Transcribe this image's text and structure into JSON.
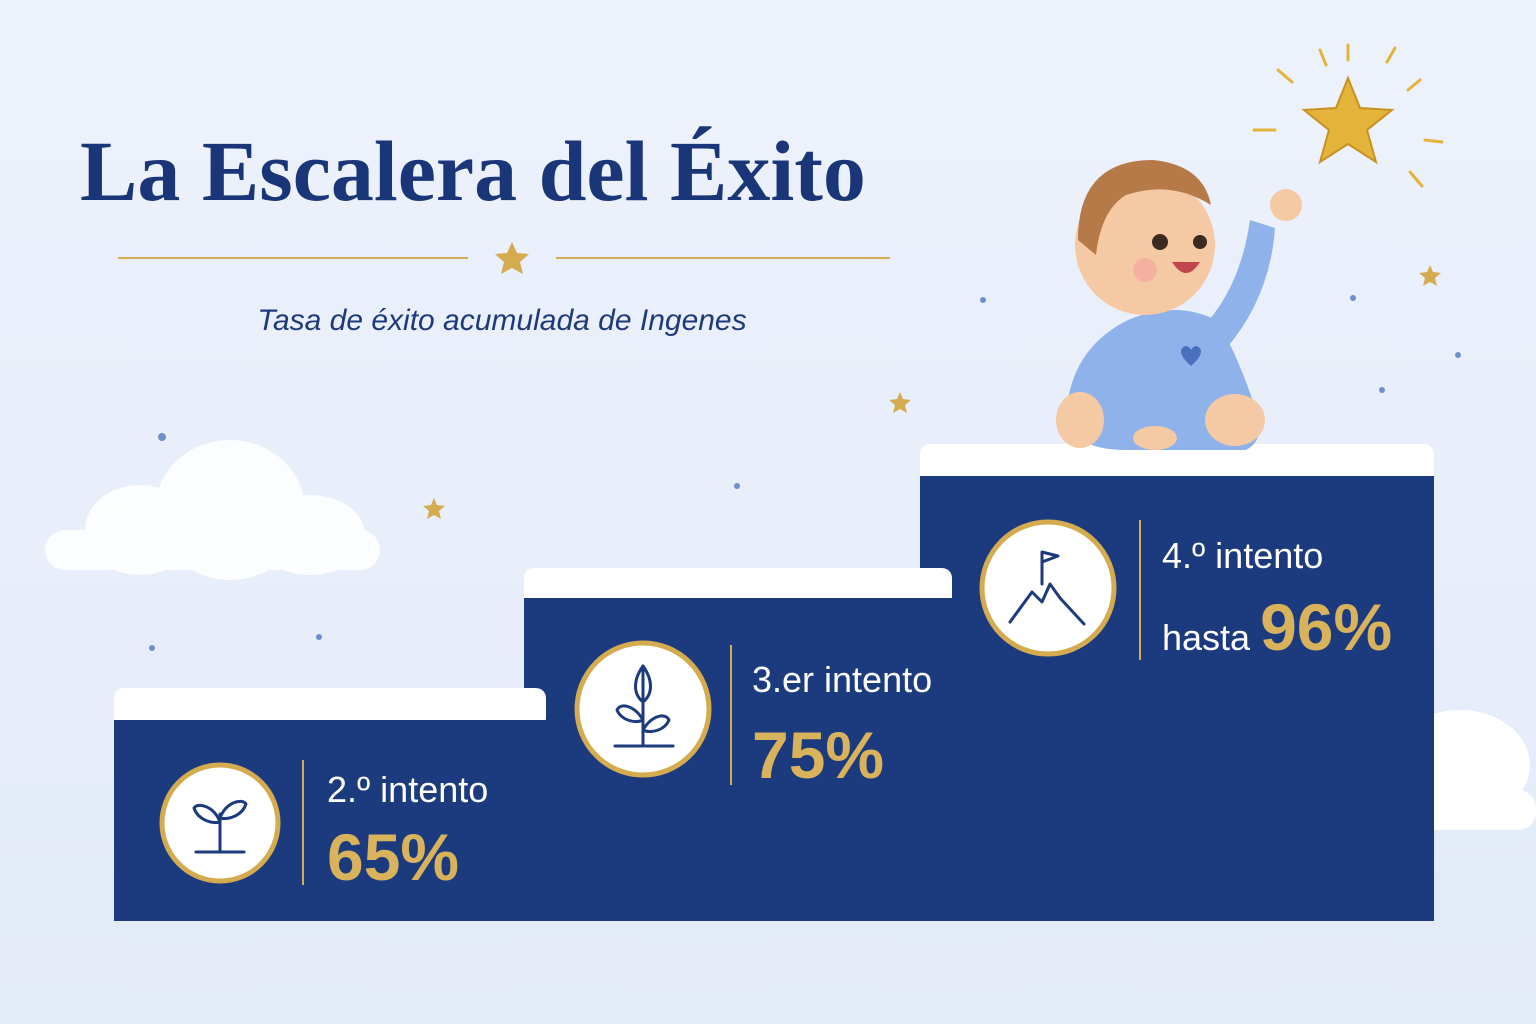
{
  "header": {
    "title": "La Escalera del Éxito",
    "subtitle": "Tasa de éxito acumulada de Ingenes"
  },
  "steps": [
    {
      "label": "2.º intento",
      "value": "65%"
    },
    {
      "label": "3.er intento",
      "value": "75%"
    },
    {
      "label": "4.º intento",
      "prefix": "hasta",
      "value": "96%"
    }
  ]
}
